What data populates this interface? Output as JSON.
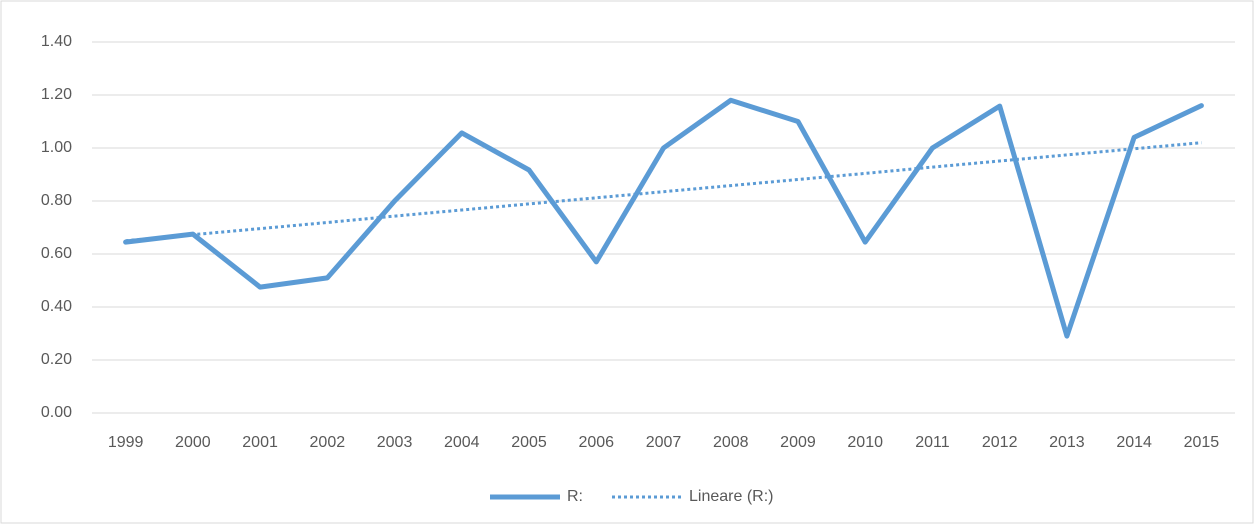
{
  "chart_data": {
    "type": "line",
    "categories": [
      "1999",
      "2000",
      "2001",
      "2002",
      "2003",
      "2004",
      "2005",
      "2006",
      "2007",
      "2008",
      "2009",
      "2010",
      "2011",
      "2012",
      "2013",
      "2014",
      "2015"
    ],
    "series": [
      {
        "name": "R:",
        "color": "#5b9bd5",
        "style": "solid",
        "values": [
          0.645,
          0.675,
          0.475,
          0.51,
          0.8,
          1.057,
          0.917,
          0.57,
          1.0,
          1.18,
          1.1,
          0.645,
          1.0,
          1.158,
          0.29,
          1.04,
          1.16
        ]
      },
      {
        "name": "Lineare (R:)",
        "color": "#5b9bd5",
        "style": "dotted",
        "values": [
          0.65,
          0.673,
          0.696,
          0.719,
          0.743,
          0.766,
          0.789,
          0.812,
          0.835,
          0.858,
          0.881,
          0.904,
          0.928,
          0.951,
          0.974,
          0.997,
          1.02
        ]
      }
    ],
    "ylim": [
      0,
      1.4
    ],
    "yticks": [
      {
        "value": 0,
        "label": "0.00"
      },
      {
        "value": 0.2,
        "label": "0.20"
      },
      {
        "value": 0.4,
        "label": "0.40"
      },
      {
        "value": 0.6,
        "label": "0.60"
      },
      {
        "value": 0.8,
        "label": "0.80"
      },
      {
        "value": 1.0,
        "label": "1.00"
      },
      {
        "value": 1.2,
        "label": "1.20"
      },
      {
        "value": 1.4,
        "label": "1.40"
      }
    ],
    "grid": true,
    "legend": "bottom"
  }
}
